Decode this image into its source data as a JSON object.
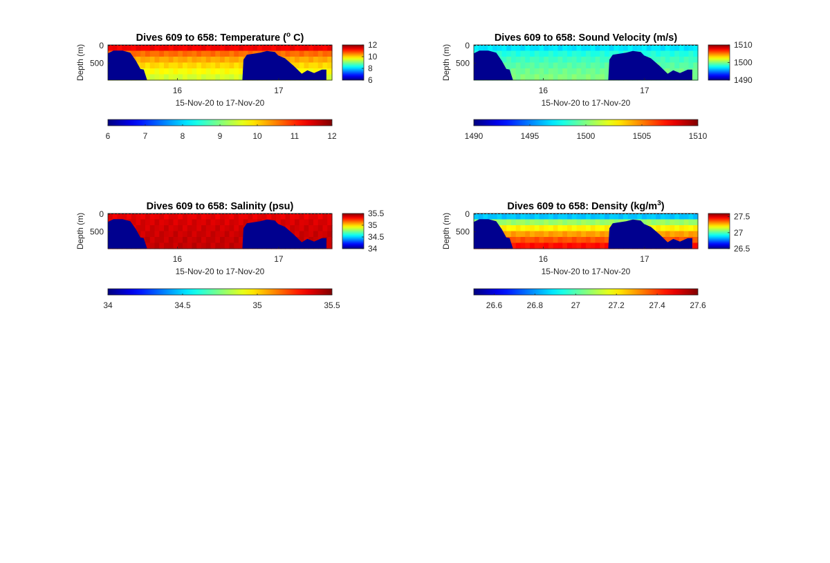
{
  "figure": {
    "date_range_label": "15-Nov-20 to 17-Nov-20",
    "depth_label": "Depth (m)",
    "depth_ticks": [
      "0",
      "500"
    ],
    "time_ticks": [
      "16",
      "17"
    ],
    "land_color": "#00008f",
    "colormap": "jet"
  },
  "chart_data": [
    {
      "type": "heatmap",
      "title": "Dives 609 to 658: Temperature (",
      "title_sup": "o",
      "title_tail": " C)",
      "xlabel": "15-Nov-20 to 17-Nov-20",
      "ylabel": "Depth (m)",
      "x_ticks": [
        "16",
        "17"
      ],
      "y_ticks": [
        "0",
        "500"
      ],
      "ylim": [
        0,
        900
      ],
      "clim": [
        6,
        12
      ],
      "colorbar_side_ticks": [
        "12",
        "10",
        "8",
        "6"
      ],
      "colorbar_bottom_ticks": [
        "6",
        "7",
        "8",
        "9",
        "10",
        "11",
        "12"
      ],
      "surface_value": 11.3,
      "bottom_value": 9.5
    },
    {
      "type": "heatmap",
      "title": "Dives 609 to 658: Sound Velocity (m/s)",
      "title_sup": "",
      "title_tail": "",
      "xlabel": "15-Nov-20 to 17-Nov-20",
      "ylabel": "Depth (m)",
      "x_ticks": [
        "16",
        "17"
      ],
      "y_ticks": [
        "0",
        "500"
      ],
      "ylim": [
        0,
        900
      ],
      "clim": [
        1490,
        1510
      ],
      "colorbar_side_ticks": [
        "1510",
        "1500",
        "1490"
      ],
      "colorbar_bottom_ticks": [
        "1490",
        "1495",
        "1500",
        "1505",
        "1510"
      ],
      "surface_value": 1497,
      "bottom_value": 1500
    },
    {
      "type": "heatmap",
      "title": "Dives 609 to 658: Salinity (psu)",
      "title_sup": "",
      "title_tail": "",
      "xlabel": "15-Nov-20 to 17-Nov-20",
      "ylabel": "Depth (m)",
      "x_ticks": [
        "16",
        "17"
      ],
      "y_ticks": [
        "0",
        "500"
      ],
      "ylim": [
        0,
        900
      ],
      "clim": [
        34,
        35.5
      ],
      "colorbar_side_ticks": [
        "35.5",
        "35",
        "34.5",
        "34"
      ],
      "colorbar_bottom_ticks": [
        "34",
        "34.5",
        "35",
        "35.5"
      ],
      "surface_value": 35.35,
      "bottom_value": 35.4
    },
    {
      "type": "heatmap",
      "title": "Dives 609 to 658: Density (kg/m",
      "title_sup": "3",
      "title_tail": ")",
      "xlabel": "15-Nov-20 to 17-Nov-20",
      "ylabel": "Depth (m)",
      "x_ticks": [
        "16",
        "17"
      ],
      "y_ticks": [
        "0",
        "500"
      ],
      "ylim": [
        0,
        900
      ],
      "clim": [
        26.5,
        27.6
      ],
      "colorbar_side_ticks": [
        "27.5",
        "27",
        "26.5"
      ],
      "colorbar_bottom_ticks": [
        "26.6",
        "26.8",
        "27",
        "27.2",
        "27.4",
        "27.6"
      ],
      "surface_value": 26.85,
      "bottom_value": 27.45
    }
  ]
}
